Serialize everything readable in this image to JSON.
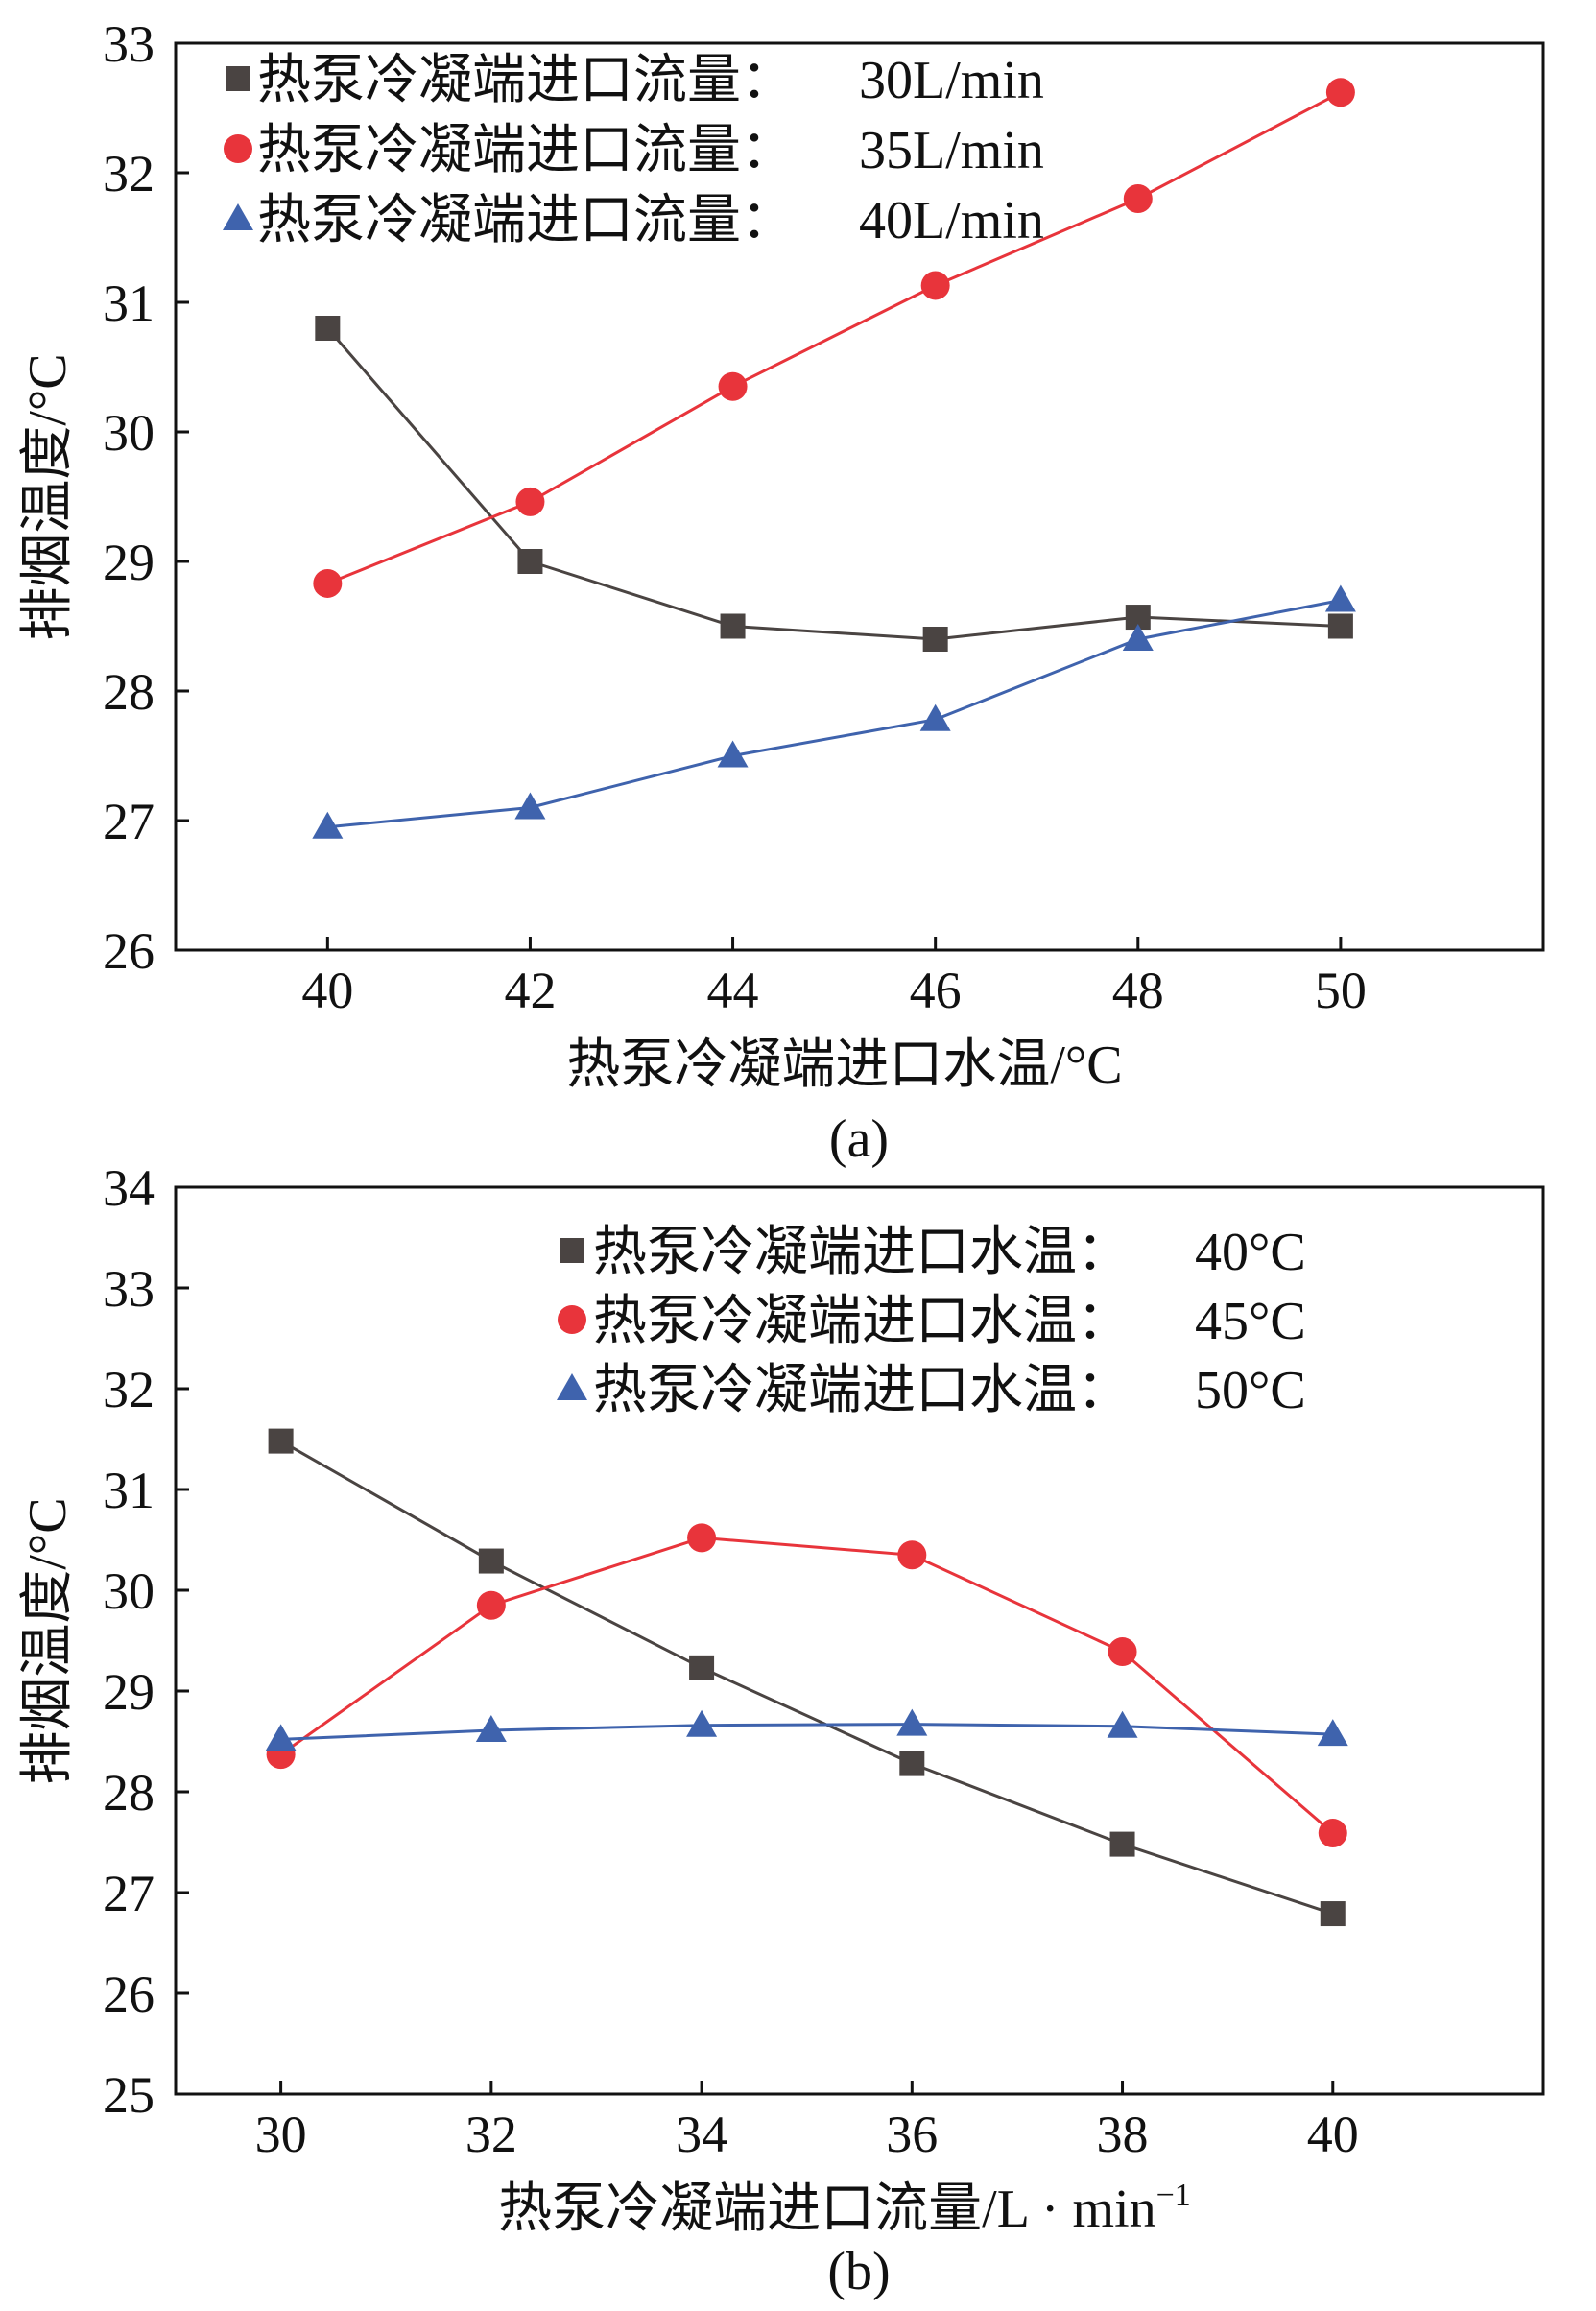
{
  "colors": {
    "black": "#4a4442",
    "red": "#e8343b",
    "blue": "#3f63ad",
    "axis": "#111111"
  },
  "chart_data": [
    {
      "type": "line",
      "panel_label": "(a)",
      "xlabel": "热泵冷凝端进口水温/°C",
      "ylabel": "排烟温度/°C",
      "xlim": [
        38.5,
        52
      ],
      "ylim": [
        26,
        33
      ],
      "xticks": [
        40,
        42,
        44,
        46,
        48,
        50
      ],
      "yticks": [
        26,
        27,
        28,
        29,
        30,
        31,
        32,
        33
      ],
      "legend_position": "top-left",
      "x": [
        40,
        42,
        44,
        46,
        48,
        50
      ],
      "series": [
        {
          "name": "热泵冷凝端进口流量：30L/min",
          "label": "热泵冷凝端进口流量：",
          "value_label": "30L/min",
          "marker": "square",
          "color_key": "black",
          "values": [
            30.8,
            29.0,
            28.5,
            28.4,
            28.57,
            28.5
          ]
        },
        {
          "name": "热泵冷凝端进口流量：35L/min",
          "label": "热泵冷凝端进口流量：",
          "value_label": "35L/min",
          "marker": "circle",
          "color_key": "red",
          "values": [
            28.83,
            29.46,
            30.35,
            31.13,
            31.8,
            32.62
          ]
        },
        {
          "name": "热泵冷凝端进口流量：40L/min",
          "label": "热泵冷凝端进口流量：",
          "value_label": "40L/min",
          "marker": "triangle",
          "color_key": "blue",
          "values": [
            26.95,
            27.1,
            27.5,
            27.78,
            28.4,
            28.7
          ]
        }
      ]
    },
    {
      "type": "line",
      "panel_label": "(b)",
      "xlabel": "热泵冷凝端进口流量/L · min",
      "xlabel_sup": "−1",
      "ylabel": "排烟温度/°C",
      "xlim": [
        29,
        42
      ],
      "ylim": [
        25,
        34
      ],
      "xticks": [
        30,
        32,
        34,
        36,
        38,
        40
      ],
      "yticks": [
        25,
        26,
        27,
        28,
        29,
        30,
        31,
        32,
        33,
        34
      ],
      "legend_position": "top-center",
      "x": [
        30,
        32,
        34,
        36,
        38,
        40
      ],
      "series": [
        {
          "name": "热泵冷凝端进口水温：40°C",
          "label": "热泵冷凝端进口水温：",
          "value_label": "40°C",
          "marker": "square",
          "color_key": "black",
          "values": [
            31.48,
            30.29,
            29.23,
            28.28,
            27.48,
            26.79
          ]
        },
        {
          "name": "热泵冷凝端进口水温：45°C",
          "label": "热泵冷凝端进口水温：",
          "value_label": "45°C",
          "marker": "circle",
          "color_key": "red",
          "values": [
            28.37,
            29.85,
            30.52,
            30.35,
            29.39,
            27.59
          ]
        },
        {
          "name": "热泵冷凝端进口水温：50°C",
          "label": "热泵冷凝端进口水温：",
          "value_label": "50°C",
          "marker": "triangle",
          "color_key": "blue",
          "values": [
            28.52,
            28.61,
            28.66,
            28.67,
            28.65,
            28.57
          ]
        }
      ]
    }
  ]
}
